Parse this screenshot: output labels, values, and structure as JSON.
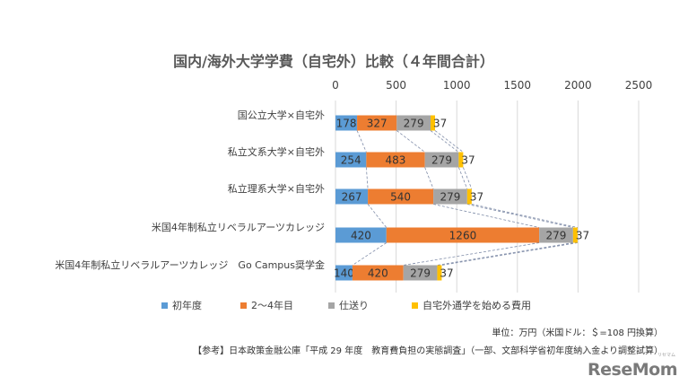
{
  "chart_data": {
    "type": "bar",
    "orientation": "horizontal",
    "stacked": true,
    "title": "国内/海外大学学費（自宅外）比較（４年間合計）",
    "xlim": [
      0,
      2500
    ],
    "xticks": [
      0,
      500,
      1000,
      1500,
      2000,
      2500
    ],
    "categories": [
      "国公立大学×自宅外",
      "私立文系大学×自宅外",
      "私立理系大学×自宅外",
      "米国4年制私立リベラルアーツカレッジ",
      "米国4年制私立リベラルアーツカレッジ　Go Campus奨学金"
    ],
    "series": [
      {
        "name": "初年度",
        "color": "#5b9bd5",
        "values": [
          178,
          254,
          267,
          420,
          140
        ]
      },
      {
        "name": "2～4年目",
        "color": "#ed7d31",
        "values": [
          327,
          483,
          540,
          1260,
          420
        ]
      },
      {
        "name": "仕送り",
        "color": "#a5a5a5",
        "values": [
          279,
          279,
          279,
          279,
          279
        ]
      },
      {
        "name": "自宅外通学を始める費用",
        "color": "#ffc000",
        "values": [
          37,
          37,
          37,
          37,
          37
        ]
      }
    ],
    "grid": true,
    "legend_position": "bottom",
    "series_lines": "dashed"
  },
  "notes": {
    "unit": "単位：万円（米国ドル：＄=108 円換算）",
    "source": "【参考】日本政策金融公庫「平成 29 年度　教育費負担の実態調査」（一部、文部科学省初年度納入金より調整試算）"
  },
  "brand": {
    "name": "ReseMom",
    "sub": "リセマム"
  }
}
